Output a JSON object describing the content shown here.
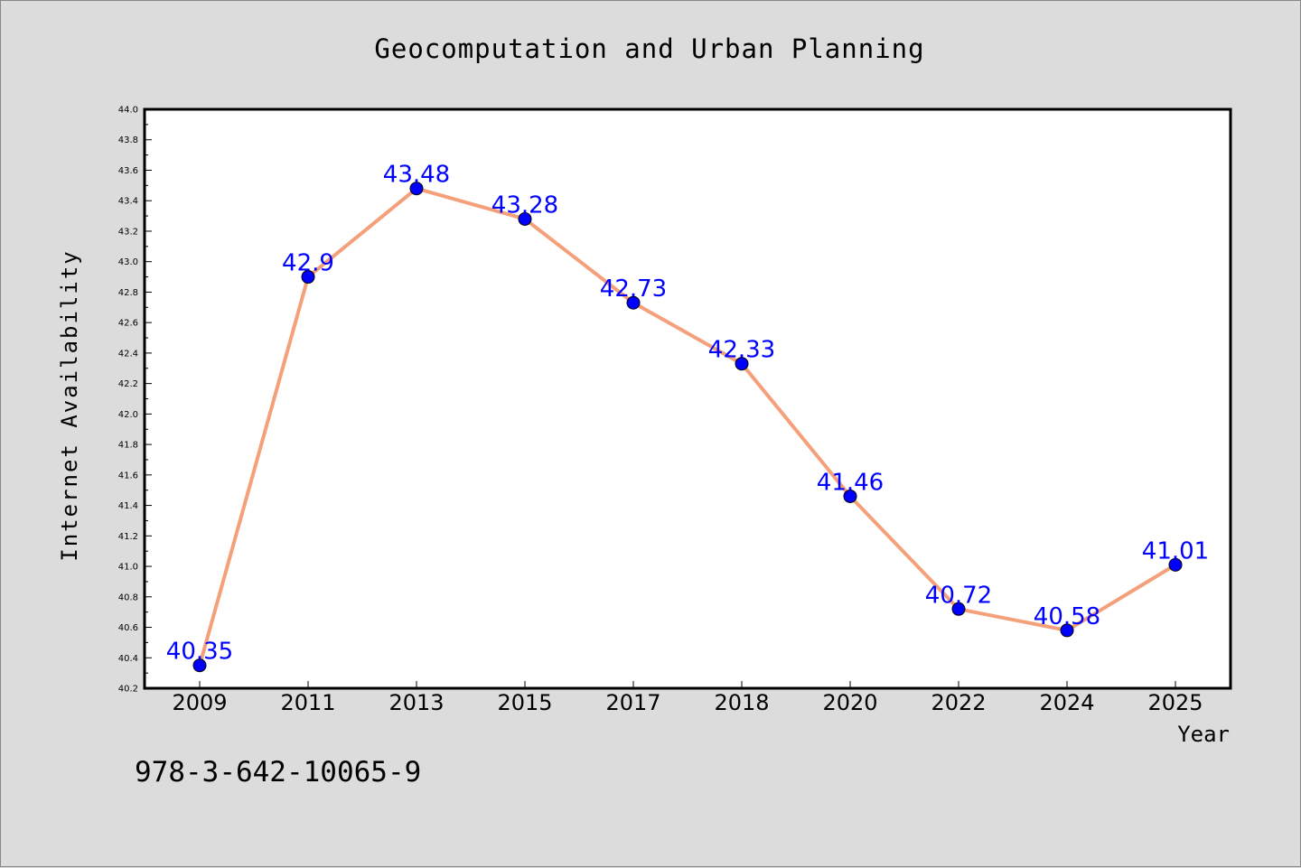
{
  "chart_data": {
    "type": "line",
    "title": "Geocomputation and Urban Planning",
    "xlabel": "Year",
    "ylabel": "Internet Availability",
    "categories": [
      "2009",
      "2011",
      "2013",
      "2015",
      "2017",
      "2018",
      "2020",
      "2022",
      "2024",
      "2025"
    ],
    "series": [
      {
        "values": [
          40.35,
          42.9,
          43.48,
          43.28,
          42.73,
          42.33,
          41.46,
          40.72,
          40.58,
          41.01
        ],
        "data_labels": [
          "40.35",
          "42.9",
          "43.48",
          "43.28",
          "42.73",
          "42.33",
          "41.46",
          "40.72",
          "40.58",
          "41.01"
        ],
        "line_color": "#f4a07a",
        "marker_color": "#0000ff",
        "label_color": "#0000ff"
      }
    ],
    "ylim": [
      40.2,
      44.0
    ],
    "yticks": [
      "40.2",
      "40.4",
      "40.6",
      "40.8",
      "41.0",
      "41.2",
      "41.4",
      "41.6",
      "41.8",
      "42.0",
      "42.2",
      "42.4",
      "42.6",
      "42.8",
      "43.0",
      "43.2",
      "43.4",
      "43.6",
      "43.8",
      "44.0"
    ],
    "grid": false,
    "background": "#dcdcdc",
    "plot_background": "#ffffff"
  },
  "footnote": "978-3-642-10065-9"
}
